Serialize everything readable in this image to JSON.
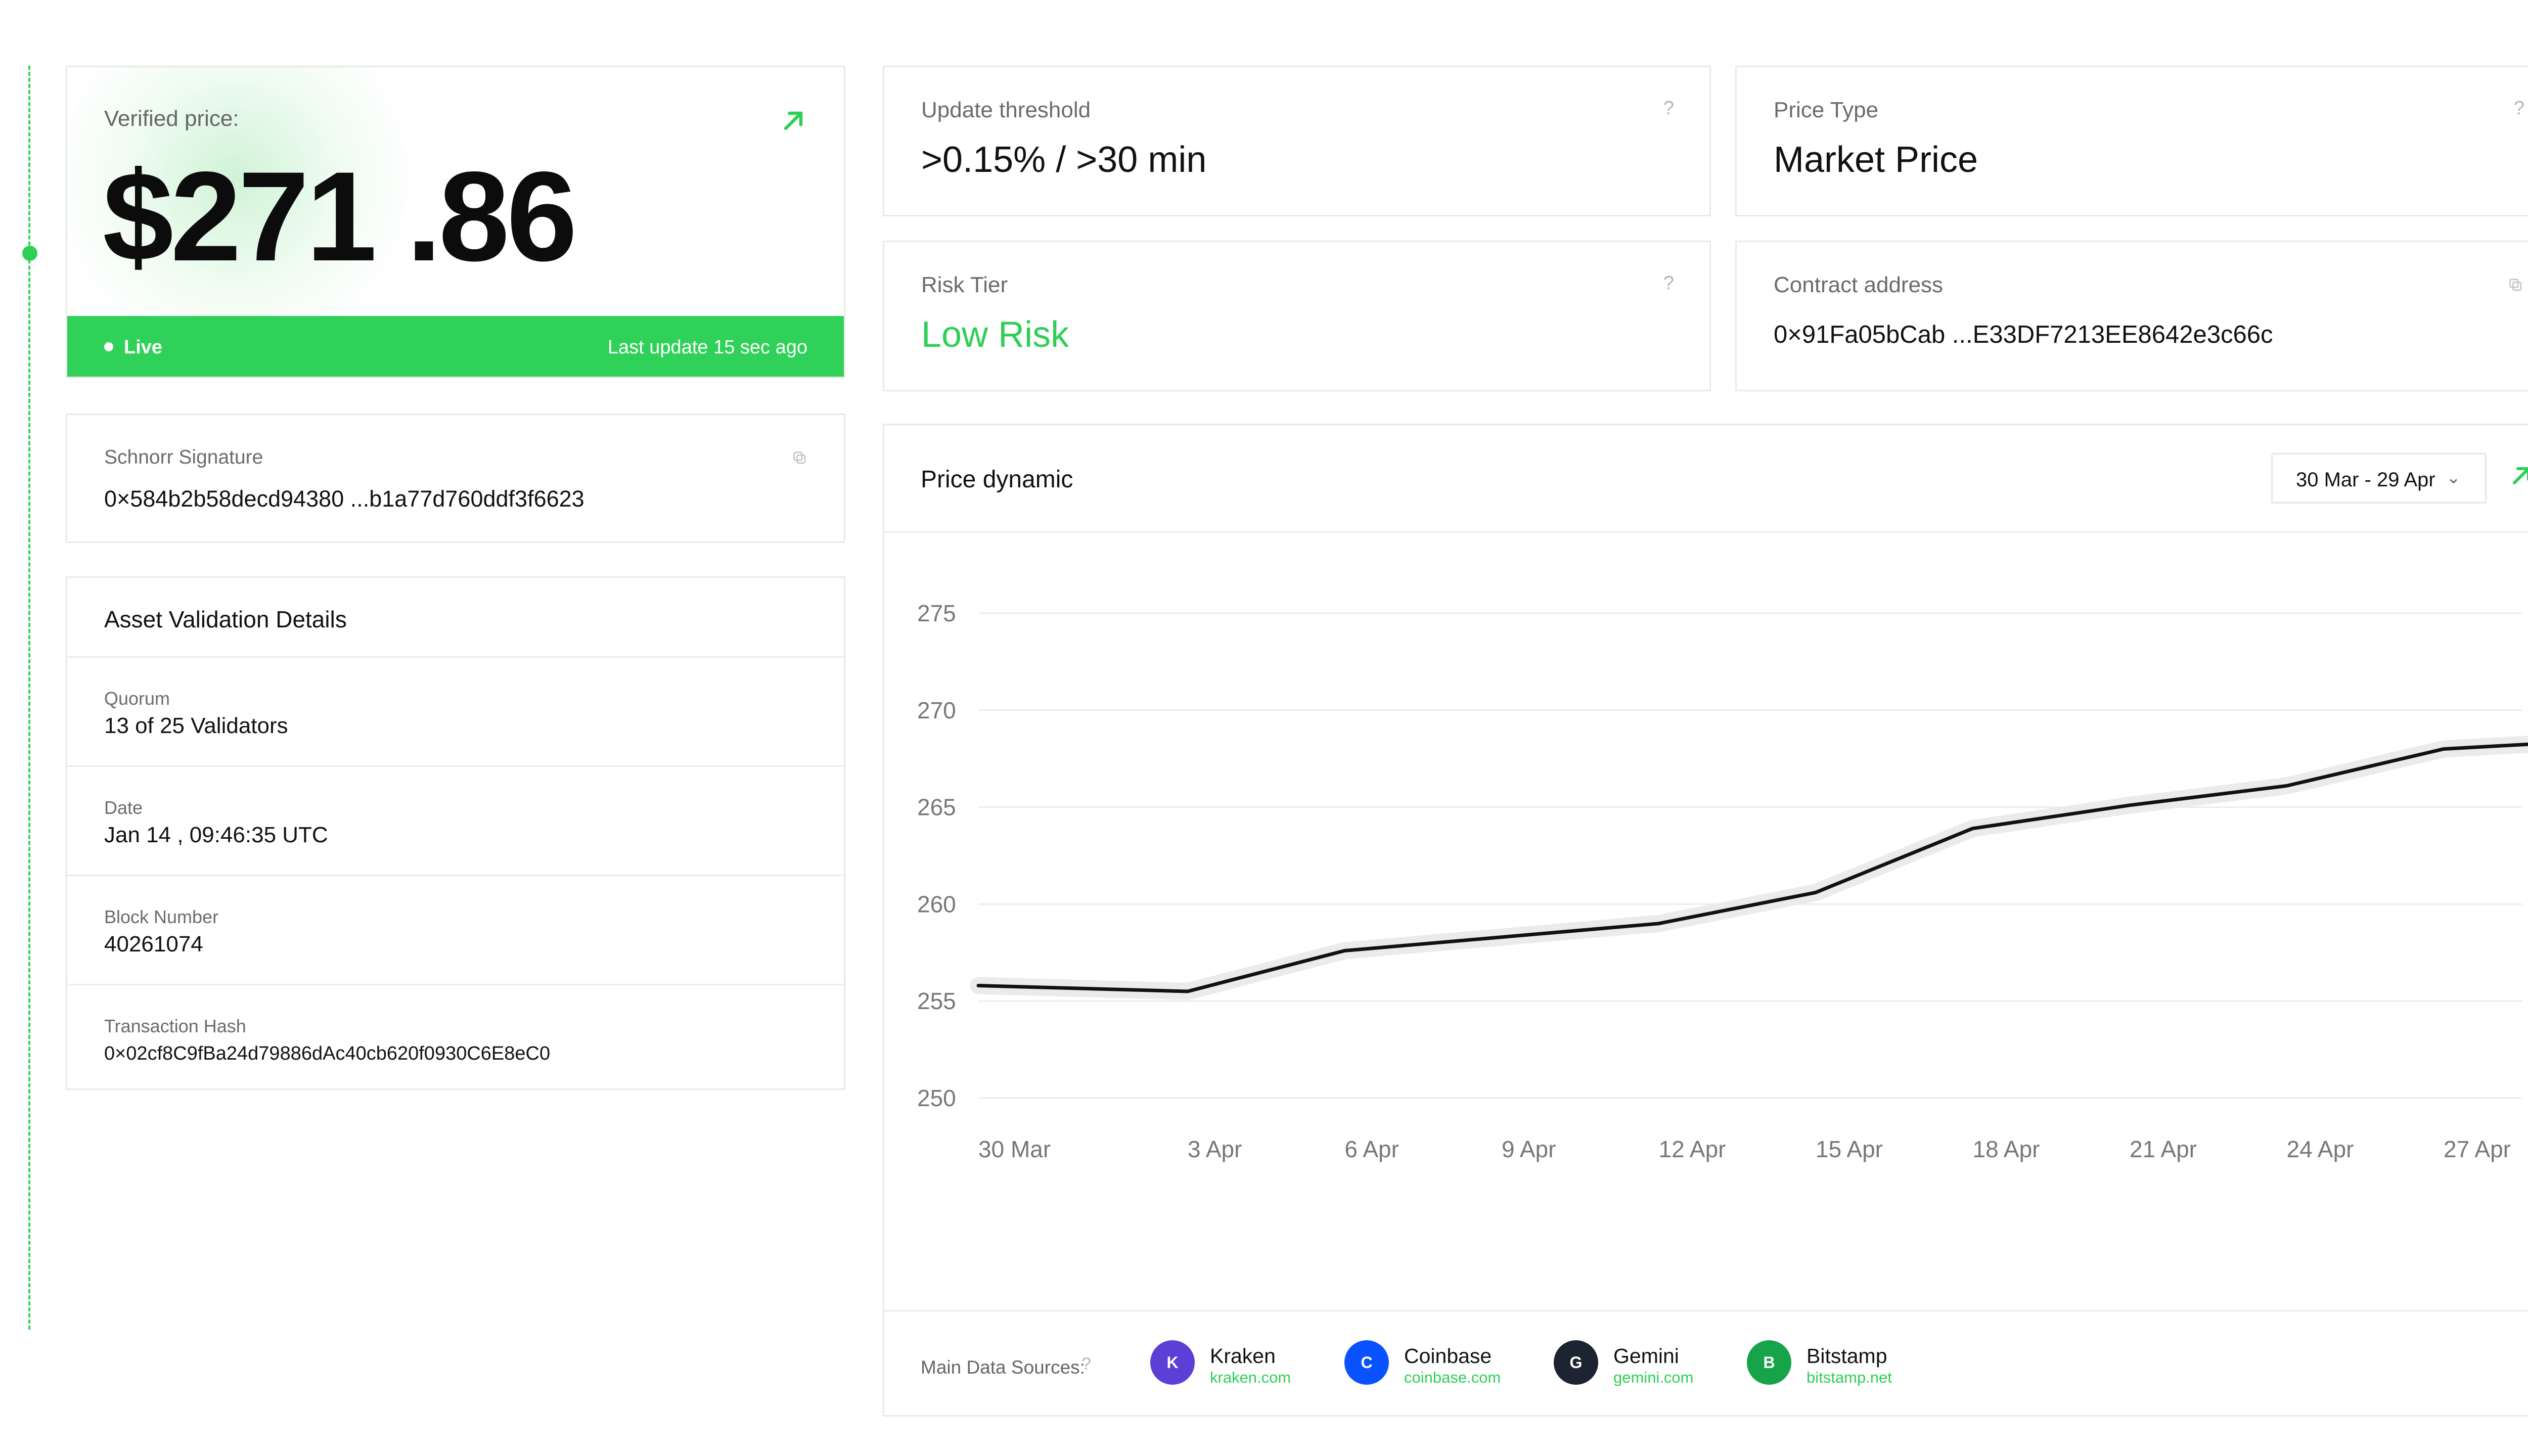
{
  "price_card": {
    "label": "Verified price:",
    "value": "$271 .86",
    "status": "Live",
    "last_update": "Last update 15 sec ago"
  },
  "schnorr": {
    "label": "Schnorr Signature",
    "value": "0×584b2b58decd94380 ...b1a77d760ddf3f6623"
  },
  "asset_validation": {
    "title": "Asset Validation Details",
    "rows": [
      {
        "label": "Quorum",
        "value": "13  of 25 Validators"
      },
      {
        "label": "Date",
        "value": "Jan 14 , 09:46:35 UTC"
      },
      {
        "label": "Block Number",
        "value": "40261074"
      },
      {
        "label": "Transaction Hash",
        "value": "0×02cf8C9fBa24d79886dAc40cb620f0930C6E8eC0"
      }
    ]
  },
  "info": {
    "update_threshold": {
      "label": "Update threshold",
      "value": ">0.15% / >30 min"
    },
    "price_type": {
      "label": "Price Type",
      "value": "Market Price"
    },
    "risk_tier": {
      "label": "Risk Tier",
      "value": "Low Risk"
    },
    "contract_address": {
      "label": "Contract address",
      "value": "0×91Fa05bCab ...E33DF7213EE8642e3c66c"
    },
    "help_glyph": "?"
  },
  "chart": {
    "title": "Price dynamic",
    "date_range": "30 Mar - 29 Apr",
    "chevron": "⌄"
  },
  "chart_data": {
    "type": "line",
    "title": "Price dynamic",
    "xlabel": "",
    "ylabel": "",
    "x_ticks": [
      "30 Mar",
      "3 Apr",
      "6 Apr",
      "9 Apr",
      "12 Apr",
      "15 Apr",
      "18 Apr",
      "21 Apr",
      "24 Apr",
      "27 Apr"
    ],
    "y_ticks": [
      250,
      255,
      260,
      265,
      270,
      275
    ],
    "ylim": [
      250,
      275
    ],
    "grid": true,
    "series": [
      {
        "x": [
          "30 Mar",
          "3 Apr",
          "6 Apr",
          "9 Apr",
          "12 Apr",
          "15 Apr",
          "18 Apr",
          "21 Apr",
          "24 Apr",
          "27 Apr",
          "29 Apr"
        ],
        "values": [
          255.8,
          255.5,
          257.6,
          258.3,
          259.0,
          260.6,
          263.9,
          265.1,
          266.1,
          268.0,
          268.3
        ]
      }
    ],
    "colors": {
      "line": "#111111",
      "band": "#ebebeb",
      "grid": "#ececec"
    }
  },
  "sources": {
    "label": "Main Data Sources:",
    "help_glyph": "?",
    "items": [
      {
        "letter": "K",
        "name": "Kraken",
        "url": "kraken.com",
        "color": "#5b3fd6"
      },
      {
        "letter": "C",
        "name": "Coinbase",
        "url": "coinbase.com",
        "color": "#0a52ff"
      },
      {
        "letter": "G",
        "name": "Gemini",
        "url": "gemini.com",
        "color": "#1b2430"
      },
      {
        "letter": "B",
        "name": "Bitstamp",
        "url": "bitstamp.net",
        "color": "#16a34a"
      }
    ]
  },
  "colors": {
    "accent": "#30d158",
    "border": "#e9e9e9"
  }
}
